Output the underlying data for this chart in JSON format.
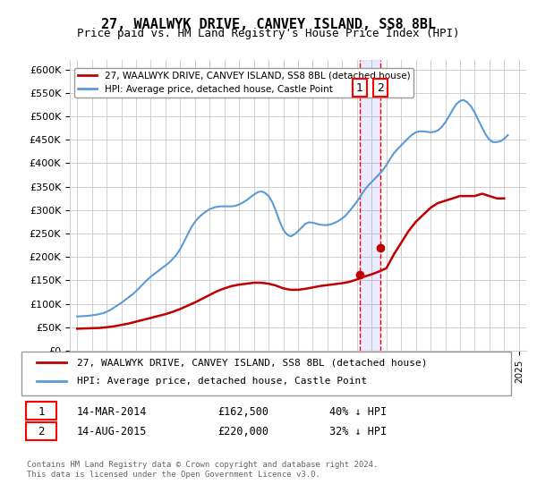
{
  "title": "27, WAALWYK DRIVE, CANVEY ISLAND, SS8 8BL",
  "subtitle": "Price paid vs. HM Land Registry's House Price Index (HPI)",
  "footer": "Contains HM Land Registry data © Crown copyright and database right 2024.\nThis data is licensed under the Open Government Licence v3.0.",
  "legend_line1": "27, WAALWYK DRIVE, CANVEY ISLAND, SS8 8BL (detached house)",
  "legend_line2": "HPI: Average price, detached house, Castle Point",
  "sale1_label": "1",
  "sale1_date": "14-MAR-2014",
  "sale1_price": "£162,500",
  "sale1_hpi": "40% ↓ HPI",
  "sale1_year": 2014.2,
  "sale2_label": "2",
  "sale2_date": "14-AUG-2015",
  "sale2_price": "£220,000",
  "sale2_hpi": "32% ↓ HPI",
  "sale2_year": 2015.6,
  "hpi_color": "#5b9bd5",
  "price_color": "#c00000",
  "sale_marker_color": "#c00000",
  "vline_color": "#ff0000",
  "grid_color": "#d0d0d0",
  "background_color": "#ffffff",
  "ylim": [
    0,
    620000
  ],
  "yticks": [
    0,
    50000,
    100000,
    150000,
    200000,
    250000,
    300000,
    350000,
    400000,
    450000,
    500000,
    550000,
    600000
  ],
  "ytick_labels": [
    "£0",
    "£50K",
    "£100K",
    "£150K",
    "£200K",
    "£250K",
    "£300K",
    "£350K",
    "£400K",
    "£450K",
    "£500K",
    "£550K",
    "£600K"
  ],
  "xlim_start": 1994.5,
  "xlim_end": 2025.5,
  "hpi_years": [
    1995.0,
    1995.25,
    1995.5,
    1995.75,
    1996.0,
    1996.25,
    1996.5,
    1996.75,
    1997.0,
    1997.25,
    1997.5,
    1997.75,
    1998.0,
    1998.25,
    1998.5,
    1998.75,
    1999.0,
    1999.25,
    1999.5,
    1999.75,
    2000.0,
    2000.25,
    2000.5,
    2000.75,
    2001.0,
    2001.25,
    2001.5,
    2001.75,
    2002.0,
    2002.25,
    2002.5,
    2002.75,
    2003.0,
    2003.25,
    2003.5,
    2003.75,
    2004.0,
    2004.25,
    2004.5,
    2004.75,
    2005.0,
    2005.25,
    2005.5,
    2005.75,
    2006.0,
    2006.25,
    2006.5,
    2006.75,
    2007.0,
    2007.25,
    2007.5,
    2007.75,
    2008.0,
    2008.25,
    2008.5,
    2008.75,
    2009.0,
    2009.25,
    2009.5,
    2009.75,
    2010.0,
    2010.25,
    2010.5,
    2010.75,
    2011.0,
    2011.25,
    2011.5,
    2011.75,
    2012.0,
    2012.25,
    2012.5,
    2012.75,
    2013.0,
    2013.25,
    2013.5,
    2013.75,
    2014.0,
    2014.25,
    2014.5,
    2014.75,
    2015.0,
    2015.25,
    2015.5,
    2015.75,
    2016.0,
    2016.25,
    2016.5,
    2016.75,
    2017.0,
    2017.25,
    2017.5,
    2017.75,
    2018.0,
    2018.25,
    2018.5,
    2018.75,
    2019.0,
    2019.25,
    2019.5,
    2019.75,
    2020.0,
    2020.25,
    2020.5,
    2020.75,
    2021.0,
    2021.25,
    2021.5,
    2021.75,
    2022.0,
    2022.25,
    2022.5,
    2022.75,
    2023.0,
    2023.25,
    2023.5,
    2023.75,
    2024.0,
    2024.25
  ],
  "hpi_values": [
    73000,
    73500,
    74000,
    74500,
    75500,
    76500,
    78000,
    80000,
    83000,
    87000,
    92000,
    97000,
    102000,
    108000,
    114000,
    120000,
    127000,
    135000,
    143000,
    151000,
    158000,
    164000,
    170000,
    176000,
    182000,
    188000,
    196000,
    205000,
    217000,
    232000,
    248000,
    263000,
    275000,
    284000,
    291000,
    297000,
    302000,
    305000,
    307000,
    308000,
    308000,
    308000,
    308000,
    309000,
    312000,
    316000,
    321000,
    327000,
    333000,
    338000,
    340000,
    337000,
    330000,
    317000,
    298000,
    276000,
    258000,
    248000,
    244000,
    248000,
    255000,
    263000,
    271000,
    274000,
    273000,
    271000,
    269000,
    268000,
    268000,
    270000,
    273000,
    277000,
    282000,
    289000,
    298000,
    308000,
    318000,
    330000,
    342000,
    352000,
    360000,
    368000,
    376000,
    385000,
    396000,
    409000,
    421000,
    430000,
    438000,
    446000,
    454000,
    461000,
    466000,
    468000,
    468000,
    467000,
    466000,
    467000,
    470000,
    477000,
    487000,
    500000,
    514000,
    526000,
    533000,
    535000,
    530000,
    521000,
    508000,
    492000,
    476000,
    461000,
    450000,
    445000,
    445000,
    447000,
    452000,
    460000
  ],
  "price_years": [
    1995.0,
    1995.5,
    1996.0,
    1996.5,
    1997.0,
    1997.5,
    1998.0,
    1998.5,
    1999.0,
    1999.5,
    2000.0,
    2000.5,
    2001.0,
    2001.5,
    2002.0,
    2002.5,
    2003.0,
    2003.5,
    2004.0,
    2004.5,
    2005.0,
    2005.5,
    2006.0,
    2006.5,
    2007.0,
    2007.5,
    2008.0,
    2008.5,
    2009.0,
    2009.5,
    2010.0,
    2010.5,
    2011.0,
    2011.5,
    2012.0,
    2012.5,
    2013.0,
    2013.5,
    2014.0,
    2014.5,
    2015.0,
    2015.5,
    2016.0,
    2016.5,
    2017.0,
    2017.5,
    2018.0,
    2018.5,
    2019.0,
    2019.5,
    2020.0,
    2020.5,
    2021.0,
    2021.5,
    2022.0,
    2022.5,
    2023.0,
    2023.5,
    2024.0
  ],
  "price_values": [
    47000,
    47500,
    48000,
    48500,
    50000,
    52000,
    55000,
    58000,
    62000,
    66000,
    70000,
    74000,
    78000,
    83000,
    89000,
    96000,
    103000,
    111000,
    119000,
    127000,
    133000,
    138000,
    141000,
    143000,
    145000,
    145000,
    143000,
    139000,
    133000,
    130000,
    130000,
    132000,
    135000,
    138000,
    140000,
    142000,
    144000,
    147000,
    152000,
    158000,
    163000,
    169000,
    176000,
    205000,
    230000,
    255000,
    275000,
    290000,
    305000,
    315000,
    320000,
    325000,
    330000,
    330000,
    330000,
    335000,
    330000,
    325000,
    325000
  ],
  "sale1_x": 2014.2,
  "sale1_y": 162500,
  "sale2_x": 2015.6,
  "sale2_y": 220000
}
